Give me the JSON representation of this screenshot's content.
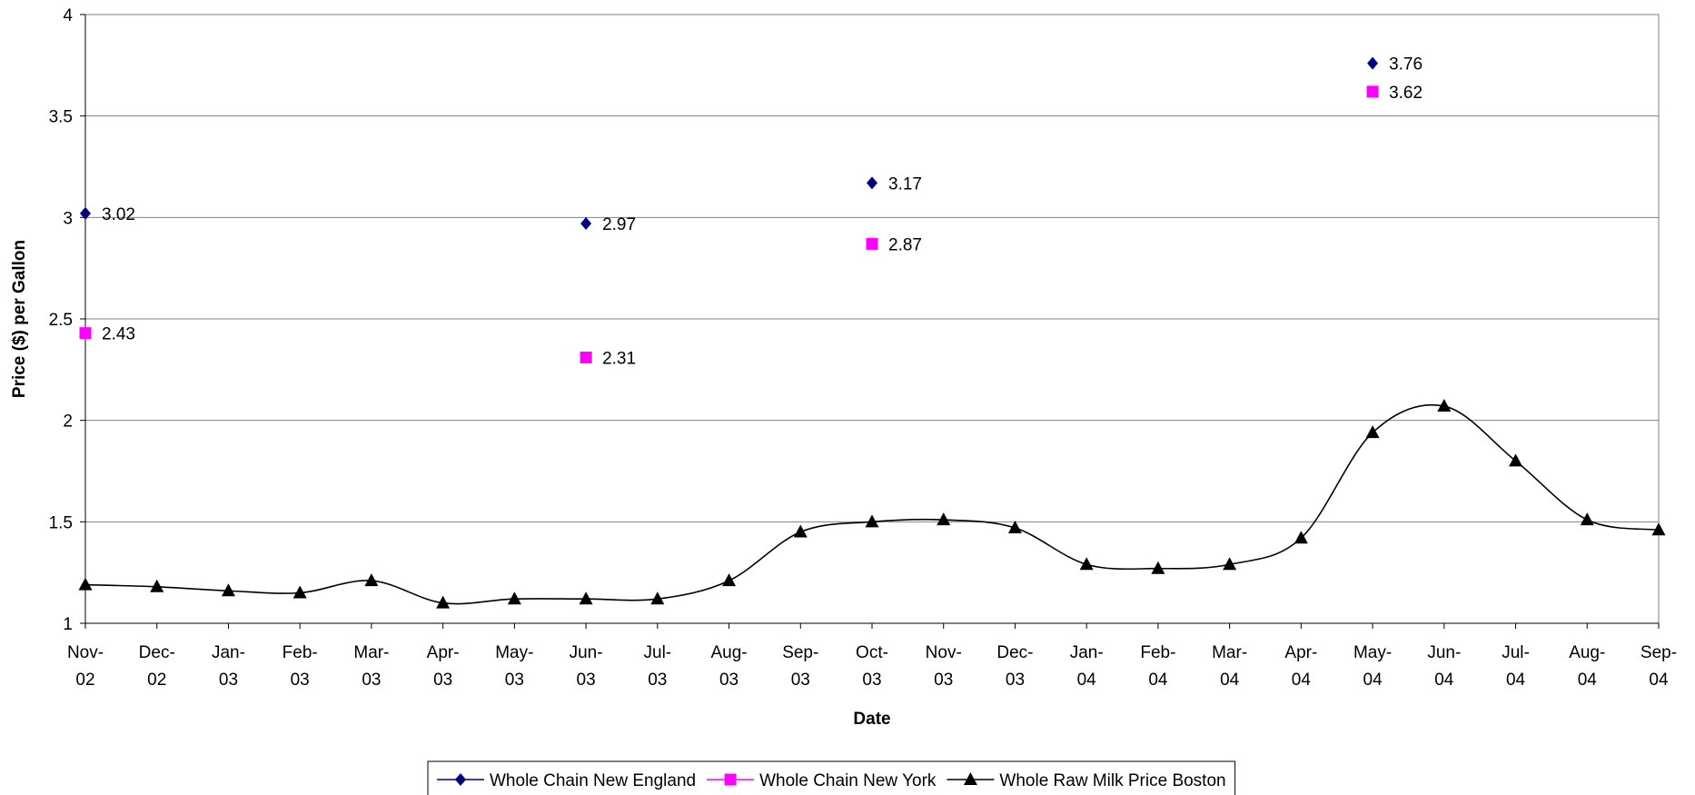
{
  "chart_data": {
    "type": "line",
    "xlabel": "Date",
    "ylabel": "Price ($) per Gallon",
    "ylim": [
      1,
      4
    ],
    "y_ticks": [
      "1",
      "1.5",
      "2",
      "2.5",
      "3",
      "3.5",
      "4"
    ],
    "grid": "horizontal",
    "legend_position": "bottom-center",
    "categories": [
      [
        "Nov-",
        "02"
      ],
      [
        "Dec-",
        "02"
      ],
      [
        "Jan-",
        "03"
      ],
      [
        "Feb-",
        "03"
      ],
      [
        "Mar-",
        "03"
      ],
      [
        "Apr-",
        "03"
      ],
      [
        "May-",
        "03"
      ],
      [
        "Jun-",
        "03"
      ],
      [
        "Jul-",
        "03"
      ],
      [
        "Aug-",
        "03"
      ],
      [
        "Sep-",
        "03"
      ],
      [
        "Oct-",
        "03"
      ],
      [
        "Nov-",
        "03"
      ],
      [
        "Dec-",
        "03"
      ],
      [
        "Jan-",
        "04"
      ],
      [
        "Feb-",
        "04"
      ],
      [
        "Mar-",
        "04"
      ],
      [
        "Apr-",
        "04"
      ],
      [
        "May-",
        "04"
      ],
      [
        "Jun-",
        "04"
      ],
      [
        "Jul-",
        "04"
      ],
      [
        "Aug-",
        "04"
      ],
      [
        "Sep-",
        "04"
      ]
    ],
    "series": [
      {
        "name": "Whole Chain New England",
        "color": "#000080",
        "marker": "diamond",
        "line": false,
        "values": [
          3.02,
          null,
          null,
          null,
          null,
          null,
          null,
          2.97,
          null,
          null,
          null,
          3.17,
          null,
          null,
          null,
          null,
          null,
          null,
          3.76,
          null,
          null,
          null,
          null
        ],
        "labels": [
          "3.02",
          null,
          null,
          null,
          null,
          null,
          null,
          "2.97",
          null,
          null,
          null,
          "3.17",
          null,
          null,
          null,
          null,
          null,
          null,
          "3.76",
          null,
          null,
          null,
          null
        ]
      },
      {
        "name": "Whole Chain New York",
        "color": "#FF00FF",
        "marker": "square",
        "line": false,
        "values": [
          2.43,
          null,
          null,
          null,
          null,
          null,
          null,
          2.31,
          null,
          null,
          null,
          2.87,
          null,
          null,
          null,
          null,
          null,
          null,
          3.62,
          null,
          null,
          null,
          null
        ],
        "labels": [
          "2.43",
          null,
          null,
          null,
          null,
          null,
          null,
          "2.31",
          null,
          null,
          null,
          "2.87",
          null,
          null,
          null,
          null,
          null,
          null,
          "3.62",
          null,
          null,
          null,
          null
        ]
      },
      {
        "name": "Whole Raw  Milk Price Boston",
        "color": "#000000",
        "marker": "triangle",
        "line": true,
        "smooth": true,
        "values": [
          1.19,
          1.18,
          1.16,
          1.15,
          1.21,
          1.1,
          1.12,
          1.12,
          1.12,
          1.21,
          1.45,
          1.5,
          1.51,
          1.47,
          1.29,
          1.27,
          1.29,
          1.42,
          1.94,
          2.07,
          1.8,
          1.51,
          1.46
        ],
        "labels": []
      }
    ]
  }
}
